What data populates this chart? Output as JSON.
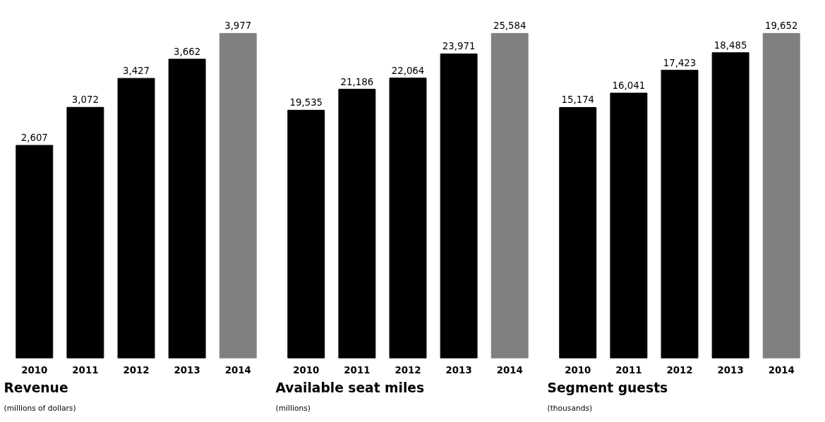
{
  "chart_data": [
    {
      "type": "bar",
      "title": "Revenue",
      "subtitle": "(millions of dollars)",
      "categories": [
        "2010",
        "2011",
        "2012",
        "2013",
        "2014"
      ],
      "values": [
        2607,
        3072,
        3427,
        3662,
        3977
      ],
      "value_labels": [
        "2,607",
        "3,072",
        "3,427",
        "3,662",
        "3,977"
      ],
      "colors": [
        "#000000",
        "#000000",
        "#000000",
        "#000000",
        "#808080"
      ],
      "grid": false
    },
    {
      "type": "bar",
      "title": "Available seat miles",
      "subtitle": "(millions)",
      "categories": [
        "2010",
        "2011",
        "2012",
        "2013",
        "2014"
      ],
      "values": [
        19535,
        21186,
        22064,
        23971,
        25584
      ],
      "value_labels": [
        "19,535",
        "21,186",
        "22,064",
        "23,971",
        "25,584"
      ],
      "colors": [
        "#000000",
        "#000000",
        "#000000",
        "#000000",
        "#808080"
      ],
      "grid": false
    },
    {
      "type": "bar",
      "title": "Segment guests",
      "subtitle": "(thousands)",
      "categories": [
        "2010",
        "2011",
        "2012",
        "2013",
        "2014"
      ],
      "values": [
        15174,
        16041,
        17423,
        18485,
        19652
      ],
      "value_labels": [
        "15,174",
        "16,041",
        "17,423",
        "18,485",
        "19,652"
      ],
      "colors": [
        "#000000",
        "#000000",
        "#000000",
        "#000000",
        "#808080"
      ],
      "grid": false
    }
  ]
}
